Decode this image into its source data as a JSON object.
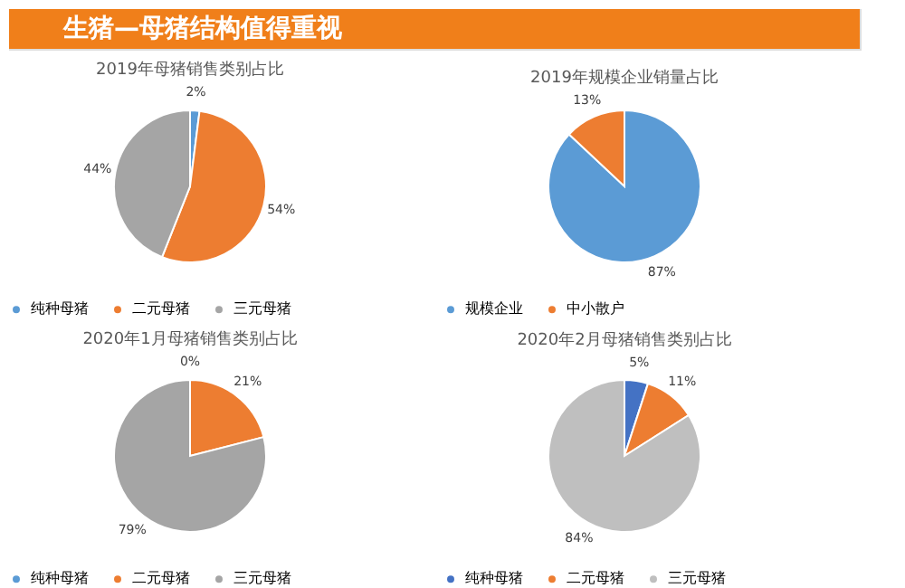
{
  "chart_data": [
    {
      "type": "pie",
      "title": "2019年母猪销售类别占比",
      "annotations": [
        "生猪—母猪结构值得重视"
      ],
      "categories": [
        "纯种母猪",
        "二元母猪",
        "三元母猪"
      ],
      "values": [
        2,
        54,
        44
      ],
      "value_labels": [
        "2%",
        "54%",
        "44%"
      ],
      "colors": [
        "#5b9bd5",
        "#ed7d31",
        "#a5a5a5"
      ],
      "legend": "bottom"
    },
    {
      "type": "pie",
      "title": "2019年规模企业销量占比",
      "categories": [
        "规模企业",
        "中小散户"
      ],
      "values": [
        87,
        13
      ],
      "value_labels": [
        "87%",
        "13%"
      ],
      "colors": [
        "#5b9bd5",
        "#ed7d31"
      ],
      "legend": "bottom"
    },
    {
      "type": "pie",
      "title": "2020年1月母猪销售类别占比",
      "categories": [
        "纯种母猪",
        "二元母猪",
        "三元母猪"
      ],
      "values": [
        0,
        21,
        79
      ],
      "value_labels": [
        "0%",
        "21%",
        "79%"
      ],
      "colors": [
        "#5b9bd5",
        "#ed7d31",
        "#a5a5a5"
      ],
      "legend": "bottom"
    },
    {
      "type": "pie",
      "title": "2020年2月母猪销售类别占比",
      "categories": [
        "纯种母猪",
        "二元母猪",
        "三元母猪"
      ],
      "values": [
        5,
        11,
        84
      ],
      "value_labels": [
        "5%",
        "11%",
        "84%"
      ],
      "colors": [
        "#4472c4",
        "#ed7d31",
        "#bfbfbf"
      ],
      "legend": "bottom"
    }
  ]
}
